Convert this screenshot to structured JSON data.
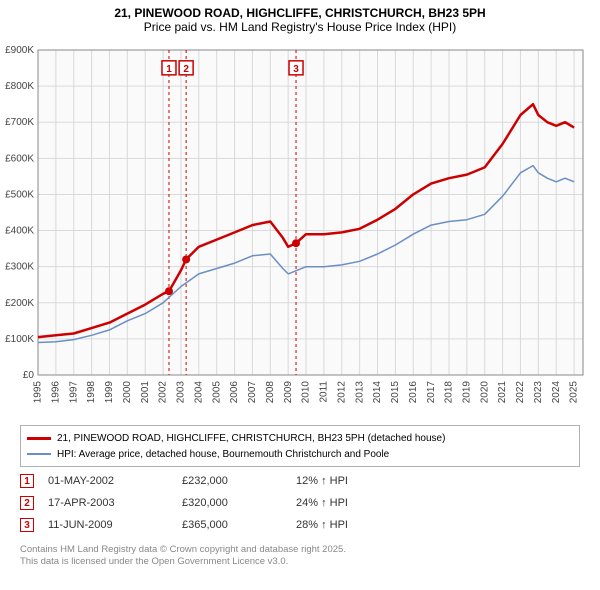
{
  "title": {
    "line1": "21, PINEWOOD ROAD, HIGHCLIFFE, CHRISTCHURCH, BH23 5PH",
    "line2": "Price paid vs. HM Land Registry's House Price Index (HPI)"
  },
  "chart": {
    "type": "line",
    "background_color": "#fafafa",
    "grid_color": "#d9d9d9",
    "axis_color": "#888888",
    "tick_font_size": 10,
    "tick_color": "#444444",
    "x": {
      "min": 1995,
      "max": 2025.5,
      "ticks": [
        1995,
        1996,
        1997,
        1998,
        1999,
        2000,
        2001,
        2002,
        2003,
        2004,
        2005,
        2006,
        2007,
        2008,
        2009,
        2010,
        2011,
        2012,
        2013,
        2014,
        2015,
        2016,
        2017,
        2018,
        2019,
        2020,
        2021,
        2022,
        2023,
        2024,
        2025
      ],
      "label_rotation": -90
    },
    "y": {
      "min": 0,
      "max": 900,
      "ticks": [
        0,
        100,
        200,
        300,
        400,
        500,
        600,
        700,
        800,
        900
      ],
      "tick_labels": [
        "£0",
        "£100K",
        "£200K",
        "£300K",
        "£400K",
        "£500K",
        "£600K",
        "£700K",
        "£800K",
        "£900K"
      ]
    },
    "series": [
      {
        "id": "price_paid",
        "label": "21, PINEWOOD ROAD, HIGHCLIFFE, CHRISTCHURCH, BH23 5PH (detached house)",
        "color": "#cc0000",
        "width": 2.5,
        "points": [
          [
            1995.0,
            105
          ],
          [
            1996,
            110
          ],
          [
            1997,
            115
          ],
          [
            1998,
            130
          ],
          [
            1999,
            145
          ],
          [
            2000,
            170
          ],
          [
            2001,
            195
          ],
          [
            2002,
            225
          ],
          [
            2002.33,
            232
          ],
          [
            2003,
            290
          ],
          [
            2003.29,
            320
          ],
          [
            2004,
            355
          ],
          [
            2005,
            375
          ],
          [
            2006,
            395
          ],
          [
            2007,
            415
          ],
          [
            2008,
            425
          ],
          [
            2008.7,
            380
          ],
          [
            2009,
            355
          ],
          [
            2009.44,
            365
          ],
          [
            2010,
            390
          ],
          [
            2011,
            390
          ],
          [
            2012,
            395
          ],
          [
            2013,
            405
          ],
          [
            2014,
            430
          ],
          [
            2015,
            460
          ],
          [
            2016,
            500
          ],
          [
            2017,
            530
          ],
          [
            2018,
            545
          ],
          [
            2019,
            555
          ],
          [
            2020,
            575
          ],
          [
            2021,
            640
          ],
          [
            2022,
            720
          ],
          [
            2022.7,
            750
          ],
          [
            2023,
            720
          ],
          [
            2023.5,
            700
          ],
          [
            2024,
            690
          ],
          [
            2024.5,
            700
          ],
          [
            2025,
            685
          ]
        ]
      },
      {
        "id": "hpi",
        "label": "HPI: Average price, detached house, Bournemouth Christchurch and Poole",
        "color": "#6a8fc5",
        "width": 1.5,
        "points": [
          [
            1995.0,
            90
          ],
          [
            1996,
            92
          ],
          [
            1997,
            98
          ],
          [
            1998,
            110
          ],
          [
            1999,
            125
          ],
          [
            2000,
            150
          ],
          [
            2001,
            170
          ],
          [
            2002,
            200
          ],
          [
            2003,
            245
          ],
          [
            2004,
            280
          ],
          [
            2005,
            295
          ],
          [
            2006,
            310
          ],
          [
            2007,
            330
          ],
          [
            2008,
            335
          ],
          [
            2008.7,
            295
          ],
          [
            2009,
            280
          ],
          [
            2010,
            300
          ],
          [
            2011,
            300
          ],
          [
            2012,
            305
          ],
          [
            2013,
            315
          ],
          [
            2014,
            335
          ],
          [
            2015,
            360
          ],
          [
            2016,
            390
          ],
          [
            2017,
            415
          ],
          [
            2018,
            425
          ],
          [
            2019,
            430
          ],
          [
            2020,
            445
          ],
          [
            2021,
            495
          ],
          [
            2022,
            560
          ],
          [
            2022.7,
            580
          ],
          [
            2023,
            560
          ],
          [
            2023.5,
            545
          ],
          [
            2024,
            535
          ],
          [
            2024.5,
            545
          ],
          [
            2025,
            535
          ]
        ]
      }
    ],
    "sale_markers": {
      "box_border": "#cc0000",
      "box_fill": "#ffffff",
      "text_color": "#cc0000",
      "vline_color": "#cc0000",
      "vline_dash": "3,3",
      "dot_color": "#cc0000",
      "dot_radius": 4,
      "items": [
        {
          "n": "1",
          "x": 2002.33,
          "y": 232,
          "label_y": 870
        },
        {
          "n": "2",
          "x": 2003.29,
          "y": 320,
          "label_y": 870
        },
        {
          "n": "3",
          "x": 2009.44,
          "y": 365,
          "label_y": 870
        }
      ]
    }
  },
  "legend": {
    "series1": "21, PINEWOOD ROAD, HIGHCLIFFE, CHRISTCHURCH, BH23 5PH (detached house)",
    "series2": "HPI: Average price, detached house, Bournemouth Christchurch and Poole"
  },
  "sales": [
    {
      "n": "1",
      "date": "01-MAY-2002",
      "price": "£232,000",
      "pct": "12% ↑ HPI"
    },
    {
      "n": "2",
      "date": "17-APR-2003",
      "price": "£320,000",
      "pct": "24% ↑ HPI"
    },
    {
      "n": "3",
      "date": "11-JUN-2009",
      "price": "£365,000",
      "pct": "28% ↑ HPI"
    }
  ],
  "footer": {
    "line1": "Contains HM Land Registry data © Crown copyright and database right 2025.",
    "line2": "This data is licensed under the Open Government Licence v3.0."
  }
}
